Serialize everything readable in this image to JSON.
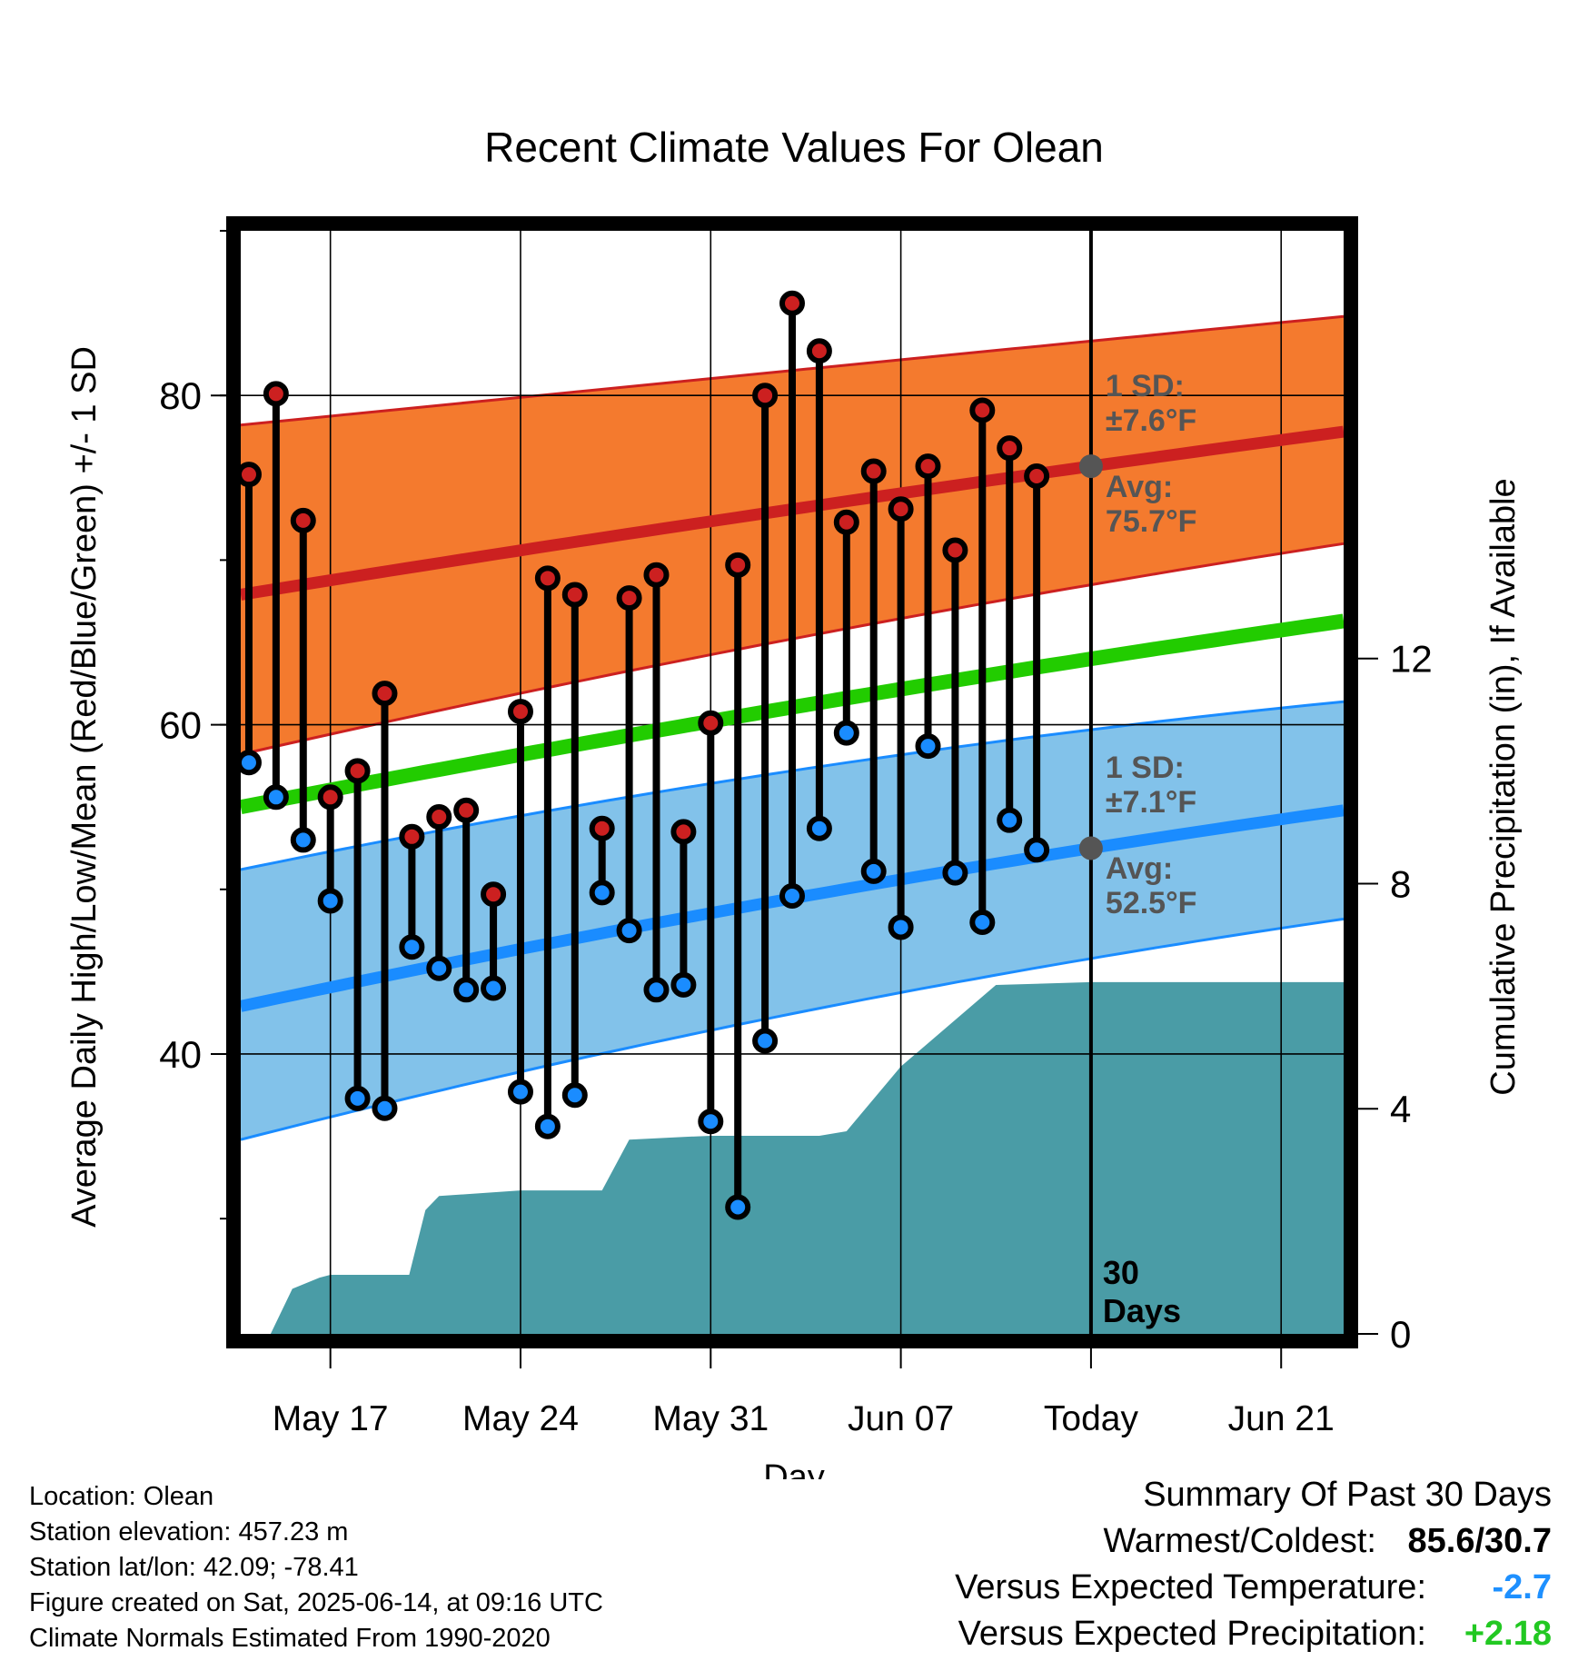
{
  "chart_data": {
    "type": "range-line",
    "title": "Recent Climate Values For Olean",
    "xlabel": "Day",
    "ylabel_left": "Average Daily High/Low/Mean (Red/Blue/Green) +/- 1 SD",
    "ylabel_right": "Cumulative Precipitation (in), If Available",
    "y_left_range": [
      23,
      90
    ],
    "y_left_ticks": [
      40,
      60,
      80
    ],
    "y_right_range": [
      0,
      19.6
    ],
    "y_right_ticks": [
      0,
      4,
      8,
      12
    ],
    "x_ticks": [
      {
        "label": "May 17",
        "day": 17
      },
      {
        "label": "May 24",
        "day": 24
      },
      {
        "label": "May 31",
        "day": 31
      },
      {
        "label": "Jun 07",
        "day": 38
      },
      {
        "label": "Today",
        "day": 45
      },
      {
        "label": "Jun 21",
        "day": 52
      }
    ],
    "today_day": 45,
    "x_range": [
      13.7,
      54.3
    ],
    "days_marker_label": [
      "30",
      "Days"
    ],
    "observations": [
      {
        "day": 14,
        "high": 75.2,
        "low": 57.7
      },
      {
        "day": 15,
        "high": 80.1,
        "low": 55.6
      },
      {
        "day": 16,
        "high": 72.4,
        "low": 53.0
      },
      {
        "day": 17,
        "high": 55.6,
        "low": 49.3
      },
      {
        "day": 18,
        "high": 57.2,
        "low": 37.3
      },
      {
        "day": 19,
        "high": 61.9,
        "low": 36.7
      },
      {
        "day": 20,
        "high": 53.2,
        "low": 46.5
      },
      {
        "day": 21,
        "high": 54.4,
        "low": 45.2
      },
      {
        "day": 22,
        "high": 54.8,
        "low": 43.9
      },
      {
        "day": 23,
        "high": 49.7,
        "low": 44.0
      },
      {
        "day": 24,
        "high": 60.8,
        "low": 37.7
      },
      {
        "day": 25,
        "high": 68.9,
        "low": 35.6
      },
      {
        "day": 26,
        "high": 67.9,
        "low": 37.5
      },
      {
        "day": 27,
        "high": 53.7,
        "low": 49.8
      },
      {
        "day": 28,
        "high": 67.7,
        "low": 47.5
      },
      {
        "day": 29,
        "high": 69.1,
        "low": 43.9
      },
      {
        "day": 30,
        "high": 53.5,
        "low": 44.2
      },
      {
        "day": 31,
        "high": 60.1,
        "low": 35.9
      },
      {
        "day": 32,
        "high": 69.7,
        "low": 30.7
      },
      {
        "day": 33,
        "high": 80.0,
        "low": 40.8
      },
      {
        "day": 34,
        "high": 85.6,
        "low": 49.6
      },
      {
        "day": 35,
        "high": 82.7,
        "low": 53.7
      },
      {
        "day": 36,
        "high": 72.3,
        "low": 59.5
      },
      {
        "day": 37,
        "high": 75.4,
        "low": 51.1
      },
      {
        "day": 38,
        "high": 73.1,
        "low": 47.7
      },
      {
        "day": 39,
        "high": 75.7,
        "low": 58.7
      },
      {
        "day": 40,
        "high": 70.6,
        "low": 51.0
      },
      {
        "day": 41,
        "high": 79.1,
        "low": 48.0
      },
      {
        "day": 42,
        "high": 76.8,
        "low": 54.2
      },
      {
        "day": 43,
        "high": 75.1,
        "low": 52.4
      }
    ],
    "normal_high": {
      "start": 67.9,
      "today": 75.7,
      "end": 77.8
    },
    "normal_high_sd_band": {
      "upper_start": 78.2,
      "upper_today": 83.3,
      "upper_end": 84.8,
      "lower_start": 58.2,
      "lower_today": 68.5,
      "lower_end": 71.0
    },
    "normal_mean": {
      "start": 55.0,
      "today": 64.0,
      "end": 66.3
    },
    "normal_low": {
      "start": 42.9,
      "today": 52.5,
      "end": 54.8
    },
    "normal_low_sd_band": {
      "upper_start": 51.2,
      "upper_today": 59.7,
      "upper_end": 61.4,
      "lower_start": 34.8,
      "lower_today": 45.8,
      "lower_end": 48.2
    },
    "precip_cumulative": {
      "points": [
        {
          "day": 14.8,
          "value": 0.0
        },
        {
          "day": 15.6,
          "value": 0.8
        },
        {
          "day": 16.6,
          "value": 1.0
        },
        {
          "day": 17.0,
          "value": 1.05
        },
        {
          "day": 19.9,
          "value": 1.05
        },
        {
          "day": 20.5,
          "value": 2.2
        },
        {
          "day": 21.0,
          "value": 2.45
        },
        {
          "day": 24.0,
          "value": 2.55
        },
        {
          "day": 27.0,
          "value": 2.55
        },
        {
          "day": 28.0,
          "value": 3.45
        },
        {
          "day": 30.0,
          "value": 3.5
        },
        {
          "day": 31.0,
          "value": 3.52
        },
        {
          "day": 35.0,
          "value": 3.52
        },
        {
          "day": 36.0,
          "value": 3.6
        },
        {
          "day": 38.0,
          "value": 4.75
        },
        {
          "day": 41.5,
          "value": 6.2
        },
        {
          "day": 45.0,
          "value": 6.25
        },
        {
          "day": 54.3,
          "value": 6.25
        }
      ]
    },
    "annotations": {
      "high_sd": [
        "1 SD:",
        "±7.6°F"
      ],
      "high_avg": [
        "Avg:",
        "75.7°F"
      ],
      "low_sd": [
        "1 SD:",
        "±7.1°F"
      ],
      "low_avg": [
        "Avg:",
        "52.5°F"
      ]
    },
    "grid": true,
    "colors": {
      "high_band": "#f47a2e",
      "high_line": "#cc2020",
      "mean_line": "#22cc00",
      "low_band": "#82c2ea",
      "low_line": "#1a8cff",
      "precip": "#4a9ca6",
      "high_dot": "#cc2020",
      "low_dot": "#1a8cff",
      "annotation": "#555555"
    }
  },
  "station_info": [
    "Location: Olean",
    "Station elevation: 457.23 m",
    "Station lat/lon: 42.09; -78.41",
    "Figure created on Sat, 2025-06-14, at 09:16 UTC",
    "Climate Normals Estimated From 1990-2020"
  ],
  "summary": {
    "title": "Summary Of Past 30 Days",
    "warmest_coldest_label": "Warmest/Coldest:",
    "warmest_coldest_value": "85.6/30.7",
    "temp_label": "Versus Expected Temperature:",
    "temp_value": "-2.7",
    "precip_label": "Versus Expected Precipitation:",
    "precip_value": "+2.18"
  }
}
